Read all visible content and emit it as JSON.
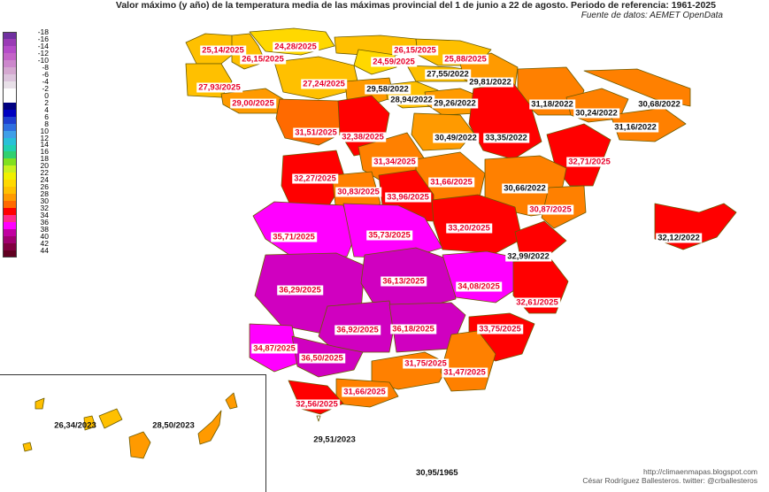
{
  "header": {
    "title": "Valor máximo (y año) de la temperatura media de las máximas provincial del 1 de junio a 22 de agosto. Periodo de referencia: 1961-2025",
    "source": "Fuente de datos: AEMET OpenData"
  },
  "legend": {
    "labels": [
      "-18",
      "-16",
      "-14",
      "-12",
      "-10",
      "-8",
      "-6",
      "-4",
      "-2",
      "0",
      "2",
      "4",
      "6",
      "8",
      "10",
      "12",
      "14",
      "16",
      "18",
      "20",
      "22",
      "24",
      "26",
      "28",
      "30",
      "32",
      "34",
      "36",
      "38",
      "40",
      "42",
      "44"
    ],
    "colors": [
      "#7030a0",
      "#9a3bb5",
      "#b54cc8",
      "#c464c8",
      "#cc88cc",
      "#d4a8d0",
      "#dcc4dc",
      "#e8e0e8",
      "#ffffff",
      "#ffffff",
      "#000080",
      "#0000c0",
      "#1f3fd0",
      "#2f6fe0",
      "#3f9fe8",
      "#28c0d8",
      "#20d0b0",
      "#30d070",
      "#80e020",
      "#c8f020",
      "#f0f000",
      "#ffd800",
      "#ffc000",
      "#ff9a00",
      "#ff6a00",
      "#ff0000",
      "#ff2a8a",
      "#ff00ff",
      "#c000a0",
      "#a00070",
      "#800040",
      "#600020"
    ]
  },
  "provinces": [
    {
      "value": "25,14/2025",
      "style": "hot",
      "color": "#ffc000"
    },
    {
      "value": "26,15/2025",
      "style": "hot",
      "color": "#ffc000"
    },
    {
      "value": "24,28/2025",
      "style": "hot",
      "color": "#ffd800"
    },
    {
      "value": "26,15/2025",
      "style": "hot",
      "color": "#ffc000"
    },
    {
      "value": "24,59/2025",
      "style": "hot",
      "color": "#ffd800"
    },
    {
      "value": "25,88/2025",
      "style": "hot",
      "color": "#ffc000"
    },
    {
      "value": "27,55/2022",
      "style": "dark",
      "color": "#ffc000"
    },
    {
      "value": "29,81/2022",
      "style": "dark",
      "color": "#ff9a00"
    },
    {
      "value": "27,93/2025",
      "style": "hot",
      "color": "#ffc000"
    },
    {
      "value": "27,24/2025",
      "style": "hot",
      "color": "#ffc000"
    },
    {
      "value": "29,58/2022",
      "style": "dark",
      "color": "#ff9a00"
    },
    {
      "value": "28,94/2022",
      "style": "dark",
      "color": "#ffc000"
    },
    {
      "value": "29,00/2025",
      "style": "hot",
      "color": "#ff9a00"
    },
    {
      "value": "29,26/2022",
      "style": "dark",
      "color": "#ff9a00"
    },
    {
      "value": "31,18/2022",
      "style": "dark",
      "color": "#ff8000"
    },
    {
      "value": "30,24/2022",
      "style": "dark",
      "color": "#ff8000"
    },
    {
      "value": "30,68/2022",
      "style": "dark",
      "color": "#ff8000"
    },
    {
      "value": "31,16/2022",
      "style": "dark",
      "color": "#ff8000"
    },
    {
      "value": "31,51/2025",
      "style": "hot",
      "color": "#ff6a00"
    },
    {
      "value": "32,38/2025",
      "style": "hot",
      "color": "#ff0000"
    },
    {
      "value": "30,49/2022",
      "style": "dark",
      "color": "#ff9a00"
    },
    {
      "value": "33,35/2022",
      "style": "dark",
      "color": "#ff0000"
    },
    {
      "value": "31,34/2025",
      "style": "hot",
      "color": "#ff8000"
    },
    {
      "value": "32,71/2025",
      "style": "hot",
      "color": "#ff0000"
    },
    {
      "value": "32,27/2025",
      "style": "hot",
      "color": "#ff0000"
    },
    {
      "value": "31,66/2025",
      "style": "hot",
      "color": "#ff8000"
    },
    {
      "value": "30,66/2022",
      "style": "dark",
      "color": "#ff8000"
    },
    {
      "value": "30,83/2025",
      "style": "hot",
      "color": "#ff8000"
    },
    {
      "value": "33,96/2025",
      "style": "hot",
      "color": "#ff0000"
    },
    {
      "value": "30,87/2025",
      "style": "hot",
      "color": "#ff8000"
    },
    {
      "value": "33,20/2025",
      "style": "hot",
      "color": "#ff0000"
    },
    {
      "value": "35,71/2025",
      "style": "hot",
      "color": "#ff00ff"
    },
    {
      "value": "35,73/2025",
      "style": "hot",
      "color": "#ff00ff"
    },
    {
      "value": "32,12/2022",
      "style": "dark",
      "color": "#ff0000"
    },
    {
      "value": "32,99/2022",
      "style": "dark",
      "color": "#ff0000"
    },
    {
      "value": "36,29/2025",
      "style": "hot",
      "color": "#d000c0"
    },
    {
      "value": "36,13/2025",
      "style": "hot",
      "color": "#d000c0"
    },
    {
      "value": "34,08/2025",
      "style": "hot",
      "color": "#ff00ff"
    },
    {
      "value": "32,61/2025",
      "style": "hot",
      "color": "#ff0000"
    },
    {
      "value": "36,92/2025",
      "style": "hot",
      "color": "#d000c0"
    },
    {
      "value": "36,18/2025",
      "style": "hot",
      "color": "#d000c0"
    },
    {
      "value": "33,75/2025",
      "style": "hot",
      "color": "#ff0000"
    },
    {
      "value": "34,87/2025",
      "style": "hot",
      "color": "#ff00ff"
    },
    {
      "value": "36,50/2025",
      "style": "hot",
      "color": "#d000c0"
    },
    {
      "value": "31,75/2025",
      "style": "hot",
      "color": "#ff8000"
    },
    {
      "value": "31,47/2025",
      "style": "hot",
      "color": "#ff8000"
    },
    {
      "value": "31,66/2025",
      "style": "hot",
      "color": "#ff8000"
    },
    {
      "value": "32,56/2025",
      "style": "hot",
      "color": "#ff0000"
    },
    {
      "value": "29,51/2023",
      "style": "plain",
      "color": "#ffffff"
    },
    {
      "value": "26,34/2023",
      "style": "plain",
      "color": "#ffc000"
    },
    {
      "value": "28,50/2023",
      "style": "plain",
      "color": "#ff9a00"
    }
  ],
  "bottom_value": "30,95/1965",
  "credits": {
    "line1": "http://climaenmapas.blogspot.com",
    "line2": "César Rodríguez Ballesteros. twitter: @crballesteros"
  },
  "colors": {
    "hot_text": "#e8002a",
    "border": "#6a5a00"
  }
}
